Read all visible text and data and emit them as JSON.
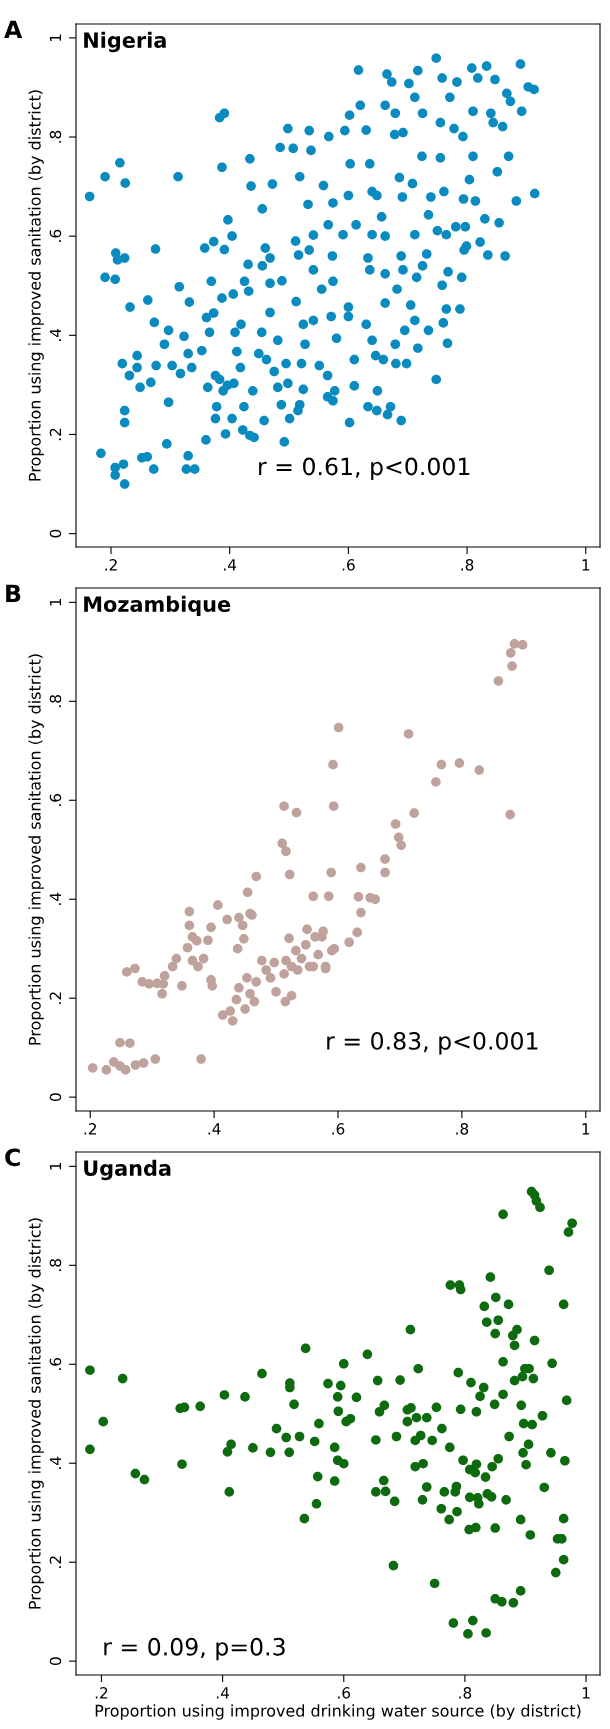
{
  "chart_data": [
    {
      "type": "scatter",
      "title": "Nigeria",
      "ylabel": "Proportion using improved sanitation (by district)",
      "annotations": [
        "A",
        "r = 0.61, p<0.001"
      ],
      "marker": "circle",
      "grid": false,
      "xlim": [
        0.141,
        1.024
      ],
      "ylim": [
        -0.027,
        1.028
      ],
      "xticks": [
        {
          "value": 0.2,
          "label": ".2"
        },
        {
          "value": 0.4,
          "label": ".4"
        },
        {
          "value": 0.6,
          "label": ".6"
        },
        {
          "value": 0.8,
          "label": ".8"
        },
        {
          "value": 1,
          "label": "1"
        }
      ],
      "yticks": [
        {
          "value": 0,
          "label": "0"
        },
        {
          "value": 0.2,
          "label": ".2"
        },
        {
          "value": 0.4,
          "label": ".4"
        },
        {
          "value": 0.6,
          "label": ".6"
        },
        {
          "value": 0.8,
          "label": ".8"
        },
        {
          "value": 1,
          "label": "1"
        }
      ],
      "series": [
        {
          "color": "#0a8bbf",
          "x": [
            0.164,
            0.19,
            0.215,
            0.224,
            0.183,
            0.207,
            0.207,
            0.223,
            0.221,
            0.223,
            0.223,
            0.219,
            0.231,
            0.244,
            0.244,
            0.249,
            0.267,
            0.272,
            0.252,
            0.261,
            0.294,
            0.297,
            0.276,
            0.273,
            0.262,
            0.232,
            0.208,
            0.211,
            0.223,
            0.19,
            0.207,
            0.275,
            0.313,
            0.315,
            0.332,
            0.303,
            0.317,
            0.29,
            0.297,
            0.323,
            0.33,
            0.336,
            0.353,
            0.33,
            0.327,
            0.341,
            0.36,
            0.358,
            0.373,
            0.391,
            0.369,
            0.383,
            0.391,
            0.387,
            0.397,
            0.404,
            0.387,
            0.406,
            0.361,
            0.373,
            0.366,
            0.363,
            0.376,
            0.383,
            0.389,
            0.378,
            0.376,
            0.393,
            0.404,
            0.396,
            0.407,
            0.418,
            0.424,
            0.422,
            0.434,
            0.441,
            0.412,
            0.419,
            0.409,
            0.425,
            0.432,
            0.431,
            0.434,
            0.436,
            0.439,
            0.455,
            0.46,
            0.455,
            0.468,
            0.472,
            0.485,
            0.498,
            0.507,
            0.468,
            0.488,
            0.468,
            0.454,
            0.449,
            0.462,
            0.475,
            0.481,
            0.458,
            0.487,
            0.492,
            0.501,
            0.498,
            0.495,
            0.481,
            0.512,
            0.516,
            0.511,
            0.518,
            0.532,
            0.534,
            0.537,
            0.541,
            0.534,
            0.524,
            0.527,
            0.521,
            0.524,
            0.518,
            0.515,
            0.541,
            0.551,
            0.565,
            0.577,
            0.565,
            0.574,
            0.541,
            0.555,
            0.571,
            0.574,
            0.558,
            0.567,
            0.566,
            0.574,
            0.573,
            0.591,
            0.58,
            0.6,
            0.603,
            0.594,
            0.602,
            0.6,
            0.6,
            0.613,
            0.61,
            0.61,
            0.602,
            0.617,
            0.62,
            0.63,
            0.636,
            0.64,
            0.648,
            0.64,
            0.633,
            0.636,
            0.63,
            0.64,
            0.646,
            0.633,
            0.648,
            0.649,
            0.656,
            0.662,
            0.662,
            0.662,
            0.659,
            0.665,
            0.673,
            0.662,
            0.679,
            0.678,
            0.671,
            0.666,
            0.679,
            0.68,
            0.691,
            0.686,
            0.689,
            0.692,
            0.682,
            0.695,
            0.698,
            0.689,
            0.692,
            0.702,
            0.712,
            0.717,
            0.708,
            0.712,
            0.715,
            0.705,
            0.712,
            0.717,
            0.724,
            0.725,
            0.732,
            0.725,
            0.735,
            0.739,
            0.735,
            0.748,
            0.748,
            0.755,
            0.755,
            0.75,
            0.758,
            0.761,
            0.765,
            0.768,
            0.765,
            0.758,
            0.76,
            0.767,
            0.771,
            0.778,
            0.781,
            0.783,
            0.788,
            0.791,
            0.793,
            0.794,
            0.797,
            0.795,
            0.799,
            0.804,
            0.81,
            0.81,
            0.808,
            0.814,
            0.818,
            0.822,
            0.83,
            0.835,
            0.833,
            0.84,
            0.844,
            0.847,
            0.851,
            0.854,
            0.86,
            0.867,
            0.87,
            0.873,
            0.883,
            0.89,
            0.892,
            0.903,
            0.913,
            0.914,
            0.864
          ],
          "values": [
            0.68,
            0.72,
            0.748,
            0.707,
            0.162,
            0.133,
            0.118,
            0.1,
            0.14,
            0.224,
            0.248,
            0.343,
            0.319,
            0.359,
            0.335,
            0.295,
            0.305,
            0.13,
            0.153,
            0.155,
            0.181,
            0.265,
            0.339,
            0.426,
            0.471,
            0.457,
            0.566,
            0.552,
            0.556,
            0.517,
            0.513,
            0.574,
            0.72,
            0.498,
            0.467,
            0.339,
            0.323,
            0.382,
            0.41,
            0.398,
            0.363,
            0.335,
            0.369,
            0.157,
            0.13,
            0.13,
            0.189,
            0.576,
            0.589,
            0.573,
            0.509,
            0.839,
            0.848,
            0.739,
            0.633,
            0.6,
            0.475,
            0.483,
            0.436,
            0.445,
            0.406,
            0.295,
            0.319,
            0.311,
            0.288,
            0.256,
            0.232,
            0.201,
            0.232,
            0.299,
            0.303,
            0.335,
            0.256,
            0.209,
            0.198,
            0.194,
            0.367,
            0.422,
            0.406,
            0.509,
            0.489,
            0.543,
            0.756,
            0.701,
            0.288,
            0.655,
            0.576,
            0.54,
            0.556,
            0.705,
            0.779,
            0.817,
            0.777,
            0.505,
            0.51,
            0.446,
            0.406,
            0.363,
            0.351,
            0.327,
            0.295,
            0.228,
            0.26,
            0.185,
            0.232,
            0.303,
            0.343,
            0.39,
            0.468,
            0.562,
            0.59,
            0.72,
            0.664,
            0.813,
            0.773,
            0.602,
            0.572,
            0.422,
            0.382,
            0.343,
            0.291,
            0.26,
            0.248,
            0.43,
            0.339,
            0.319,
            0.288,
            0.276,
            0.268,
            0.532,
            0.493,
            0.438,
            0.509,
            0.702,
            0.801,
            0.623,
            0.667,
            0.56,
            0.603,
            0.394,
            0.682,
            0.746,
            0.813,
            0.844,
            0.457,
            0.438,
            0.623,
            0.351,
            0.298,
            0.224,
            0.935,
            0.864,
            0.814,
            0.746,
            0.69,
            0.682,
            0.603,
            0.556,
            0.532,
            0.422,
            0.39,
            0.359,
            0.256,
            0.248,
            0.288,
            0.639,
            0.6,
            0.524,
            0.465,
            0.351,
            0.927,
            0.911,
            0.864,
            0.848,
            0.805,
            0.256,
            0.24,
            0.382,
            0.343,
            0.679,
            0.718,
            0.56,
            0.532,
            0.493,
            0.41,
            0.343,
            0.228,
            0.809,
            0.908,
            0.88,
            0.934,
            0.706,
            0.603,
            0.517,
            0.461,
            0.43,
            0.374,
            0.761,
            0.848,
            0.564,
            0.54,
            0.41,
            0.679,
            0.643,
            0.959,
            0.311,
            0.758,
            0.829,
            0.611,
            0.919,
            0.69,
            0.603,
            0.528,
            0.453,
            0.501,
            0.425,
            0.384,
            0.88,
            0.817,
            0.619,
            0.911,
            0.453,
            0.517,
            0.801,
            0.675,
            0.619,
            0.572,
            0.58,
            0.714,
            0.761,
            0.852,
            0.939,
            0.671,
            0.919,
            0.588,
            0.635,
            0.562,
            0.943,
            0.848,
            0.829,
            0.916,
            0.73,
            0.627,
            0.821,
            0.888,
            0.761,
            0.872,
            0.671,
            0.947,
            0.852,
            0.901,
            0.896,
            0.686,
            0.56
          ]
        }
      ]
    },
    {
      "type": "scatter",
      "title": "Mozambique",
      "ylabel": "Proportion using improved sanitation (by district)",
      "annotations": [
        "B",
        "r = 0.83, p<0.001"
      ],
      "marker": "circle",
      "grid": false,
      "xlim": [
        0.177,
        1.023
      ],
      "ylim": [
        -0.028,
        1.029
      ],
      "xticks": [
        {
          "value": 0.2,
          "label": ".2"
        },
        {
          "value": 0.4,
          "label": ".4"
        },
        {
          "value": 0.6,
          "label": ".6"
        },
        {
          "value": 0.8,
          "label": ".8"
        },
        {
          "value": 1,
          "label": "1"
        }
      ],
      "yticks": [
        {
          "value": 0,
          "label": "0"
        },
        {
          "value": 0.2,
          "label": ".2"
        },
        {
          "value": 0.4,
          "label": ".4"
        },
        {
          "value": 0.6,
          "label": ".6"
        },
        {
          "value": 0.8,
          "label": ".8"
        },
        {
          "value": 1,
          "label": "1"
        }
      ],
      "series": [
        {
          "color": "#c0a29c",
          "x": [
            0.204,
            0.226,
            0.238,
            0.248,
            0.257,
            0.248,
            0.264,
            0.273,
            0.286,
            0.305,
            0.379,
            0.259,
            0.272,
            0.284,
            0.295,
            0.308,
            0.32,
            0.316,
            0.318,
            0.333,
            0.339,
            0.348,
            0.357,
            0.36,
            0.36,
            0.365,
            0.372,
            0.365,
            0.374,
            0.383,
            0.39,
            0.395,
            0.395,
            0.397,
            0.406,
            0.414,
            0.421,
            0.426,
            0.43,
            0.436,
            0.438,
            0.44,
            0.446,
            0.448,
            0.454,
            0.458,
            0.461,
            0.44,
            0.45,
            0.453,
            0.458,
            0.465,
            0.468,
            0.468,
            0.477,
            0.484,
            0.491,
            0.497,
            0.5,
            0.51,
            0.516,
            0.513,
            0.533,
            0.522,
            0.513,
            0.516,
            0.521,
            0.515,
            0.525,
            0.525,
            0.532,
            0.535,
            0.541,
            0.548,
            0.55,
            0.554,
            0.56,
            0.56,
            0.563,
            0.568,
            0.576,
            0.574,
            0.58,
            0.58,
            0.585,
            0.589,
            0.592,
            0.593,
            0.59,
            0.594,
            0.601,
            0.618,
            0.631,
            0.633,
            0.637,
            0.637,
            0.652,
            0.66,
            0.676,
            0.676,
            0.693,
            0.698,
            0.702,
            0.714,
            0.723,
            0.758,
            0.767,
            0.796,
            0.828,
            0.878,
            0.859,
            0.881,
            0.879,
            0.885,
            0.898
          ],
          "values": [
            0.059,
            0.055,
            0.071,
            0.063,
            0.055,
            0.11,
            0.109,
            0.065,
            0.069,
            0.077,
            0.077,
            0.253,
            0.26,
            0.233,
            0.229,
            0.23,
            0.245,
            0.209,
            0.229,
            0.264,
            0.28,
            0.225,
            0.302,
            0.375,
            0.347,
            0.324,
            0.316,
            0.276,
            0.264,
            0.28,
            0.317,
            0.343,
            0.237,
            0.225,
            0.388,
            0.166,
            0.359,
            0.174,
            0.154,
            0.197,
            0.3,
            0.363,
            0.347,
            0.32,
            0.414,
            0.371,
            0.368,
            0.221,
            0.178,
            0.241,
            0.209,
            0.193,
            0.233,
            0.446,
            0.276,
            0.257,
            0.241,
            0.272,
            0.213,
            0.513,
            0.497,
            0.588,
            0.575,
            0.45,
            0.249,
            0.276,
            0.321,
            0.193,
            0.205,
            0.264,
            0.296,
            0.257,
            0.28,
            0.308,
            0.339,
            0.264,
            0.264,
            0.406,
            0.324,
            0.288,
            0.335,
            0.324,
            0.264,
            0.26,
            0.406,
            0.454,
            0.672,
            0.588,
            0.296,
            0.3,
            0.747,
            0.313,
            0.333,
            0.405,
            0.373,
            0.464,
            0.403,
            0.4,
            0.454,
            0.481,
            0.552,
            0.525,
            0.509,
            0.734,
            0.574,
            0.637,
            0.672,
            0.675,
            0.661,
            0.571,
            0.841,
            0.871,
            0.898,
            0.916,
            0.914
          ]
        }
      ]
    },
    {
      "type": "scatter",
      "title": "Uganda",
      "xlabel": "Proportion using improved drinking water source (by district)",
      "ylabel": "Proportion using improved sanitation (by district)",
      "annotations": [
        "C",
        "r = 0.09, p=0.3"
      ],
      "marker": "circle",
      "grid": false,
      "xlim": [
        0.158,
        1.023
      ],
      "ylim": [
        -0.028,
        1.029
      ],
      "xticks": [
        {
          "value": 0.2,
          "label": ".2"
        },
        {
          "value": 0.4,
          "label": ".4"
        },
        {
          "value": 0.6,
          "label": ".6"
        },
        {
          "value": 0.8,
          "label": ".8"
        },
        {
          "value": 1,
          "label": "1"
        }
      ],
      "yticks": [
        {
          "value": 0,
          "label": "0"
        },
        {
          "value": 0.2,
          "label": ".2"
        },
        {
          "value": 0.4,
          "label": ".4"
        },
        {
          "value": 0.6,
          "label": ".6"
        },
        {
          "value": 0.8,
          "label": ".8"
        },
        {
          "value": 1,
          "label": "1"
        }
      ],
      "series": [
        {
          "color": "#0e6a0e",
          "x": [
            0.181,
            0.181,
            0.203,
            0.235,
            0.256,
            0.271,
            0.33,
            0.337,
            0.363,
            0.333,
            0.403,
            0.437,
            0.408,
            0.414,
            0.411,
            0.45,
            0.465,
            0.479,
            0.489,
            0.505,
            0.51,
            0.511,
            0.511,
            0.518,
            0.527,
            0.537,
            0.535,
            0.552,
            0.555,
            0.557,
            0.559,
            0.574,
            0.585,
            0.585,
            0.59,
            0.595,
            0.591,
            0.59,
            0.6,
            0.6,
            0.604,
            0.611,
            0.621,
            0.639,
            0.653,
            0.653,
            0.656,
            0.659,
            0.667,
            0.666,
            0.669,
            0.682,
            0.684,
            0.687,
            0.693,
            0.705,
            0.71,
            0.711,
            0.705,
            0.718,
            0.72,
            0.723,
            0.718,
            0.727,
            0.731,
            0.73,
            0.737,
            0.737,
            0.746,
            0.75,
            0.753,
            0.762,
            0.761,
            0.766,
            0.774,
            0.775,
            0.776,
            0.781,
            0.784,
            0.789,
            0.787,
            0.791,
            0.793,
            0.786,
            0.793,
            0.797,
            0.805,
            0.807,
            0.808,
            0.808,
            0.81,
            0.813,
            0.817,
            0.818,
            0.819,
            0.819,
            0.821,
            0.823,
            0.825,
            0.831,
            0.832,
            0.834,
            0.835,
            0.836,
            0.837,
            0.842,
            0.844,
            0.845,
            0.849,
            0.85,
            0.85,
            0.85,
            0.851,
            0.855,
            0.855,
            0.861,
            0.863,
            0.863,
            0.863,
            0.868,
            0.872,
            0.873,
            0.879,
            0.88,
            0.882,
            0.882,
            0.886,
            0.892,
            0.892,
            0.893,
            0.895,
            0.896,
            0.897,
            0.899,
            0.901,
            0.905,
            0.906,
            0.908,
            0.91,
            0.911,
            0.913,
            0.915,
            0.915,
            0.918,
            0.924,
            0.928,
            0.931,
            0.939,
            0.942,
            0.944,
            0.95,
            0.953,
            0.96,
            0.963,
            0.963,
            0.963,
            0.965,
            0.968,
            0.971,
            0.977
          ],
          "values": [
            0.588,
            0.428,
            0.484,
            0.571,
            0.379,
            0.367,
            0.511,
            0.513,
            0.515,
            0.398,
            0.538,
            0.534,
            0.423,
            0.438,
            0.342,
            0.431,
            0.581,
            0.422,
            0.47,
            0.452,
            0.422,
            0.562,
            0.553,
            0.519,
            0.454,
            0.632,
            0.288,
            0.444,
            0.318,
            0.373,
            0.48,
            0.561,
            0.432,
            0.364,
            0.534,
            0.557,
            0.505,
            0.406,
            0.399,
            0.601,
            0.484,
            0.49,
            0.533,
            0.62,
            0.447,
            0.342,
            0.567,
            0.504,
            0.517,
            0.365,
            0.343,
            0.193,
            0.323,
            0.454,
            0.568,
            0.508,
            0.67,
            0.512,
            0.484,
            0.446,
            0.492,
            0.591,
            0.393,
            0.456,
            0.399,
            0.326,
            0.352,
            0.492,
            0.446,
            0.157,
            0.513,
            0.47,
            0.308,
            0.342,
            0.286,
            0.432,
            0.76,
            0.077,
            0.342,
            0.583,
            0.302,
            0.76,
            0.751,
            0.353,
            0.509,
            0.406,
            0.055,
            0.266,
            0.331,
            0.387,
            0.563,
            0.082,
            0.381,
            0.27,
            0.504,
            0.398,
            0.33,
            0.318,
            0.535,
            0.553,
            0.717,
            0.372,
            0.057,
            0.685,
            0.338,
            0.776,
            0.332,
            0.393,
            0.519,
            0.662,
            0.269,
            0.126,
            0.735,
            0.689,
            0.409,
            0.12,
            0.903,
            0.605,
            0.539,
            0.326,
            0.721,
            0.454,
            0.658,
            0.118,
            0.638,
            0.567,
            0.67,
            0.142,
            0.286,
            0.517,
            0.575,
            0.421,
            0.48,
            0.591,
            0.397,
            0.438,
            0.591,
            0.255,
            0.949,
            0.478,
            0.571,
            0.942,
            0.648,
            0.93,
            0.917,
            0.496,
            0.351,
            0.79,
            0.421,
            0.602,
            0.179,
            0.247,
            0.247,
            0.721,
            0.205,
            0.288,
            0.405,
            0.527,
            0.867,
            0.885
          ]
        }
      ]
    }
  ]
}
